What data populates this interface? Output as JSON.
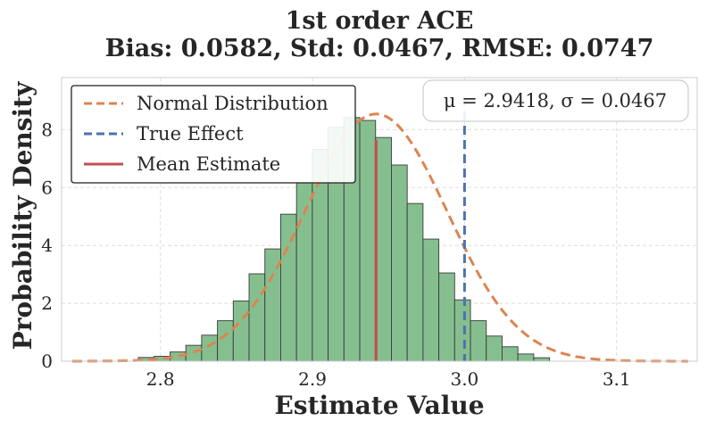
{
  "chart_data": {
    "type": "histogram",
    "title_line1": "1st order ACE",
    "title_line2": "Bias: 0.0582, Std: 0.0467, RMSE: 0.0747",
    "xlabel": "Estimate Value",
    "ylabel": "Probability Density",
    "xlim": [
      2.735,
      3.153
    ],
    "ylim": [
      0,
      9.8
    ],
    "xticks": [
      2.8,
      2.9,
      3.0,
      3.1
    ],
    "xtick_labels": [
      "2.8",
      "2.9",
      "3.0",
      "3.1"
    ],
    "yticks": [
      0,
      2,
      4,
      6,
      8
    ],
    "ytick_labels": [
      "0",
      "2",
      "4",
      "6",
      "8"
    ],
    "grid": true,
    "bins": {
      "start": 2.7855,
      "width": 0.0104,
      "densities": [
        0.13,
        0.17,
        0.32,
        0.55,
        0.9,
        1.4,
        2.08,
        3.02,
        3.88,
        5.08,
        6.18,
        7.32,
        8.08,
        8.42,
        8.32,
        7.73,
        6.78,
        5.45,
        4.22,
        3.05,
        2.12,
        1.4,
        0.87,
        0.5,
        0.25,
        0.12
      ]
    },
    "normal": {
      "mu": 2.9418,
      "sigma": 0.0467
    },
    "true_effect": 3.0,
    "mean_estimate": 2.9418,
    "legend": {
      "position": "upper-left",
      "entries": [
        "Normal Distribution",
        "True Effect",
        "Mean Estimate"
      ]
    },
    "stats_box": {
      "text": "μ = 2.9418, σ = 0.0467",
      "position": "upper-right"
    },
    "colors": {
      "bar_fill": "#86bf8f",
      "bar_edge": "#3a3a3a",
      "normal": "#dd8452",
      "true_effect": "#4c72b0",
      "mean": "#c44e52",
      "grid": "#dedede",
      "axis": "#cccccc"
    }
  }
}
